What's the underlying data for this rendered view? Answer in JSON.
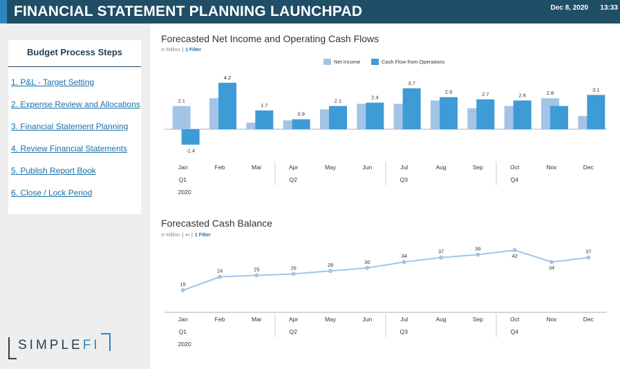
{
  "header": {
    "title": "FINANCIAL STATEMENT PLANNING LAUNCHPAD",
    "date": "Dec 8, 2020",
    "time": "13:33"
  },
  "sidebar": {
    "title": "Budget Process Steps",
    "steps": [
      {
        "label": "1.  P&L - Target Setting"
      },
      {
        "label": "2.  Expense Review and Allocations"
      },
      {
        "label": "3.  Financial Statement Planning"
      },
      {
        "label": "4.  Review Financial Statements"
      },
      {
        "label": "5.  Publish Report Book"
      },
      {
        "label": "6.  Close / Lock Period"
      }
    ]
  },
  "logo": {
    "text_main": "SIMPLE",
    "text_accent": "FI"
  },
  "colors": {
    "net_income": "#a3c4e6",
    "cash_flow": "#3d9bd6",
    "line": "#a3c4e6",
    "header": "#1f4e66"
  },
  "chart1": {
    "title": "Forecasted Net Income and Operating Cash Flows",
    "unit": "in Million",
    "filter": "1 Filter"
  },
  "chart2": {
    "title": "Forecasted Cash Balance",
    "unit": "in Million",
    "filter": "1 Filter"
  },
  "chart_data": [
    {
      "type": "bar",
      "title": "Forecasted Net Income and Operating Cash Flows",
      "categories": [
        "Jan",
        "Feb",
        "Mar",
        "Apr",
        "May",
        "Jun",
        "Jul",
        "Aug",
        "Sep",
        "Oct",
        "Nov",
        "Dec"
      ],
      "quarters": [
        "Q1",
        "Q2",
        "Q3",
        "Q4"
      ],
      "year": "2020",
      "series": [
        {
          "name": "Net Income",
          "values": [
            2.1,
            2.8,
            0.6,
            0.8,
            1.8,
            2.3,
            2.3,
            2.6,
            1.9,
            2.1,
            2.8,
            1.2
          ]
        },
        {
          "name": "Cash Flow from Operations",
          "values": [
            -1.4,
            4.2,
            1.7,
            0.9,
            2.1,
            2.4,
            3.7,
            2.9,
            2.7,
            2.6,
            2.1,
            3.1
          ]
        }
      ],
      "bar_labels": [
        {
          "series": 0,
          "index": 0,
          "text": "2.1"
        },
        {
          "series": 1,
          "index": 0,
          "text": "-1.4"
        },
        {
          "series": 1,
          "index": 1,
          "text": "4.2"
        },
        {
          "series": 1,
          "index": 2,
          "text": "1.7"
        },
        {
          "series": 1,
          "index": 3,
          "text": "0.9"
        },
        {
          "series": 1,
          "index": 4,
          "text": "2.1"
        },
        {
          "series": 1,
          "index": 5,
          "text": "2.4"
        },
        {
          "series": 1,
          "index": 6,
          "text": "3.7"
        },
        {
          "series": 1,
          "index": 7,
          "text": "2.9"
        },
        {
          "series": 1,
          "index": 8,
          "text": "2.7"
        },
        {
          "series": 1,
          "index": 9,
          "text": "2.6"
        },
        {
          "series": 0,
          "index": 10,
          "text": "2.8"
        },
        {
          "series": 1,
          "index": 11,
          "text": "3.1"
        }
      ],
      "ylim": [
        -2,
        4.5
      ],
      "legend": "top"
    },
    {
      "type": "line",
      "title": "Forecasted Cash Balance",
      "categories": [
        "Jan",
        "Feb",
        "Mar",
        "Apr",
        "May",
        "Jun",
        "Jul",
        "Aug",
        "Sep",
        "Oct",
        "Nov",
        "Dec"
      ],
      "quarters": [
        "Q1",
        "Q2",
        "Q3",
        "Q4"
      ],
      "year": "2020",
      "values": [
        15,
        24,
        25,
        26,
        28,
        30,
        34,
        37,
        39,
        42,
        34,
        37
      ],
      "ylim": [
        10,
        45
      ]
    }
  ]
}
